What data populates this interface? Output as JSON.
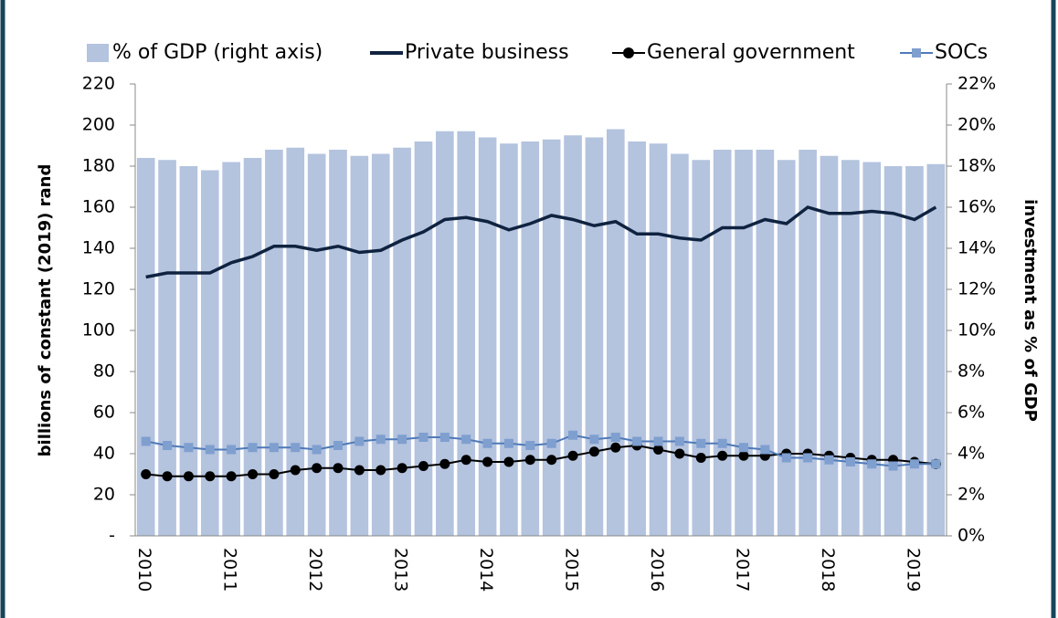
{
  "chart_data": {
    "type": "combo",
    "categories": [
      "2010",
      null,
      null,
      null,
      "2011",
      null,
      null,
      null,
      "2012",
      null,
      null,
      null,
      "2013",
      null,
      null,
      null,
      "2014",
      null,
      null,
      null,
      "2015",
      null,
      null,
      null,
      "2016",
      null,
      null,
      null,
      "2017",
      null,
      null,
      null,
      "2018",
      null,
      null,
      null,
      "2019",
      null
    ],
    "y_label": "billions of constant (2019) rand",
    "y2_label": "investment as % of GDP",
    "ylim": [
      0,
      220
    ],
    "yticks": [
      {
        "value": 0,
        "label": "-"
      },
      20,
      40,
      60,
      80,
      100,
      120,
      140,
      160,
      180,
      200,
      220
    ],
    "y2lim": [
      0,
      22
    ],
    "y2ticks": [
      {
        "value": 0,
        "label": "0%"
      },
      {
        "value": 2,
        "label": "2%"
      },
      {
        "value": 4,
        "label": "4%"
      },
      {
        "value": 6,
        "label": "6%"
      },
      {
        "value": 8,
        "label": "8%"
      },
      {
        "value": 10,
        "label": "10%"
      },
      {
        "value": 12,
        "label": "12%"
      },
      {
        "value": 14,
        "label": "14%"
      },
      {
        "value": 16,
        "label": "16%"
      },
      {
        "value": 18,
        "label": "18%"
      },
      {
        "value": 20,
        "label": "20%"
      },
      {
        "value": 22,
        "label": "22%"
      }
    ],
    "legend": "top",
    "series": [
      {
        "name": "% of GDP (right axis)",
        "type": "bar",
        "axis": "y2",
        "color": "#b4c3de",
        "values": [
          18.4,
          18.3,
          18.0,
          17.8,
          18.2,
          18.4,
          18.8,
          18.9,
          18.6,
          18.8,
          18.5,
          18.6,
          18.9,
          19.2,
          19.7,
          19.7,
          19.4,
          19.1,
          19.2,
          19.3,
          19.5,
          19.4,
          19.8,
          19.2,
          19.1,
          18.6,
          18.3,
          18.8,
          18.8,
          18.8,
          18.3,
          18.8,
          18.5,
          18.3,
          18.2,
          18.0,
          18.0,
          18.1
        ]
      },
      {
        "name": "Private business",
        "type": "line",
        "color": "#0f2340",
        "values": [
          126,
          128,
          128,
          128,
          133,
          136,
          141,
          141,
          139,
          141,
          138,
          139,
          144,
          148,
          154,
          155,
          153,
          149,
          152,
          156,
          154,
          151,
          153,
          147,
          147,
          145,
          144,
          150,
          150,
          154,
          152,
          160,
          157,
          157,
          158,
          157,
          154,
          160
        ]
      },
      {
        "name": "General government",
        "type": "circle",
        "color": "#000000",
        "values": [
          30,
          29,
          29,
          29,
          29,
          30,
          30,
          32,
          33,
          33,
          32,
          32,
          33,
          34,
          35,
          37,
          36,
          36,
          37,
          37,
          39,
          41,
          43,
          44,
          42,
          40,
          38,
          39,
          39,
          39,
          40,
          40,
          39,
          38,
          37,
          37,
          36,
          35
        ]
      },
      {
        "name": "SOCs",
        "type": "square",
        "color": "#7f9fcf",
        "values": [
          46,
          44,
          43,
          42,
          42,
          43,
          43,
          43,
          42,
          44,
          46,
          47,
          47,
          48,
          48,
          47,
          45,
          45,
          44,
          45,
          49,
          47,
          48,
          46,
          46,
          46,
          45,
          45,
          43,
          42,
          38,
          38,
          37,
          36,
          35,
          34,
          35,
          35
        ]
      }
    ]
  }
}
